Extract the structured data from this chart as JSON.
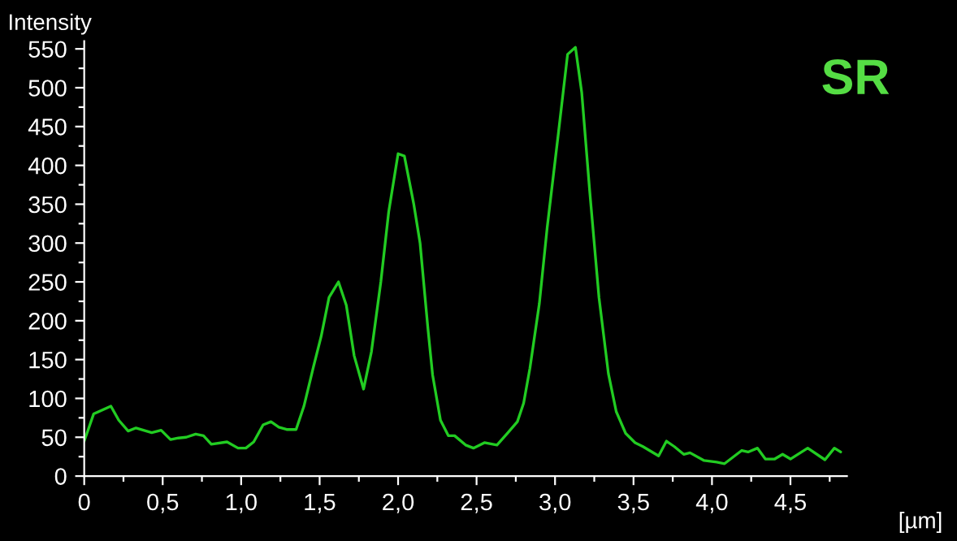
{
  "chart_data": {
    "type": "line",
    "xlabel": "[µm]",
    "ylabel": "Intensity",
    "annotations": [
      "SR"
    ],
    "series": [
      {
        "color": "#22cc22",
        "x": [
          0,
          0.06,
          0.17,
          0.22,
          0.28,
          0.33,
          0.43,
          0.49,
          0.55,
          0.6,
          0.65,
          0.71,
          0.76,
          0.81,
          0.91,
          0.98,
          1.03,
          1.08,
          1.14,
          1.19,
          1.24,
          1.29,
          1.35,
          1.4,
          1.46,
          1.51,
          1.56,
          1.62,
          1.67,
          1.72,
          1.78,
          1.83,
          1.89,
          1.94,
          2.0,
          2.04,
          2.1,
          2.14,
          2.19,
          2.22,
          2.27,
          2.32,
          2.36,
          2.43,
          2.48,
          2.55,
          2.63,
          2.7,
          2.76,
          2.8,
          2.84,
          2.9,
          2.95,
          3.02,
          3.08,
          3.13,
          3.17,
          3.22,
          3.28,
          3.34,
          3.39,
          3.45,
          3.51,
          3.56,
          3.66,
          3.71,
          3.76,
          3.82,
          3.86,
          3.95,
          4.03,
          4.08,
          4.19,
          4.23,
          4.29,
          4.34,
          4.4,
          4.45,
          4.5,
          4.61,
          4.72,
          4.78,
          4.82
        ],
        "values": [
          45,
          80,
          90,
          72,
          58,
          62,
          56,
          59,
          47,
          49,
          50,
          54,
          52,
          41,
          44,
          36,
          36,
          44,
          66,
          70,
          63,
          60,
          60,
          90,
          140,
          180,
          230,
          250,
          220,
          155,
          112,
          160,
          250,
          340,
          415,
          412,
          350,
          300,
          190,
          130,
          72,
          52,
          52,
          40,
          36,
          43,
          40,
          56,
          70,
          94,
          139,
          222,
          320,
          439,
          543,
          552,
          494,
          369,
          230,
          132,
          83,
          55,
          43,
          38,
          26,
          45,
          38,
          28,
          30,
          20,
          18,
          16,
          33,
          31,
          36,
          22,
          22,
          28,
          22,
          36,
          21,
          36,
          31
        ]
      }
    ],
    "xlim": [
      0,
      4.86
    ],
    "ylim": [
      0,
      560
    ],
    "xticks": [
      0,
      {
        "value": 0.25,
        "label": null
      },
      {
        "value": 0.5,
        "label": "0,5"
      },
      {
        "value": 0.75,
        "label": null
      },
      {
        "value": 1.0,
        "label": "1,0"
      },
      {
        "value": 1.25,
        "label": null
      },
      {
        "value": 1.5,
        "label": "1,5"
      },
      {
        "value": 1.75,
        "label": null
      },
      {
        "value": 2.0,
        "label": "2,0"
      },
      {
        "value": 2.25,
        "label": null
      },
      {
        "value": 2.5,
        "label": "2,5"
      },
      {
        "value": 2.75,
        "label": null
      },
      {
        "value": 3.0,
        "label": "3,0"
      },
      {
        "value": 3.25,
        "label": null
      },
      {
        "value": 3.5,
        "label": "3,5"
      },
      {
        "value": 3.75,
        "label": null
      },
      {
        "value": 4.0,
        "label": "4,0"
      },
      {
        "value": 4.25,
        "label": null
      },
      {
        "value": 4.5,
        "label": "4,5"
      },
      {
        "value": 4.75,
        "label": null
      }
    ],
    "yticks": [
      0,
      {
        "value": 25,
        "label": null
      },
      50,
      {
        "value": 75,
        "label": null
      },
      100,
      {
        "value": 125,
        "label": null
      },
      150,
      {
        "value": 175,
        "label": null
      },
      200,
      {
        "value": 225,
        "label": null
      },
      250,
      {
        "value": 275,
        "label": null
      },
      300,
      {
        "value": 325,
        "label": null
      },
      350,
      {
        "value": 375,
        "label": null
      },
      400,
      {
        "value": 425,
        "label": null
      },
      450,
      {
        "value": 475,
        "label": null
      },
      500,
      {
        "value": 525,
        "label": null
      },
      550
    ],
    "grid": false,
    "marker": "none",
    "line_style": "solid"
  }
}
